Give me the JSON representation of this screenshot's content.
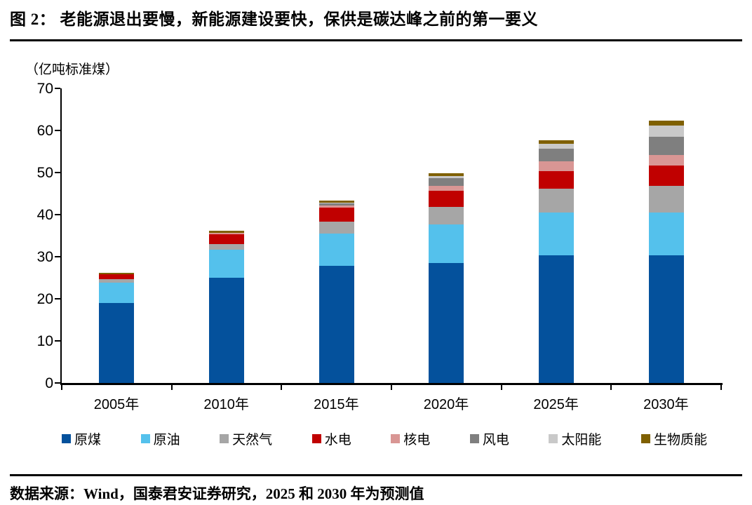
{
  "header": {
    "title": "图 2：  老能源退出要慢，新能源建设要快，保供是碳达峰之前的第一要义"
  },
  "footer": {
    "source": "数据来源：Wind，国泰君安证券研究，2025 和 2030 年为预测值"
  },
  "chart_data": {
    "type": "bar",
    "stacked": true,
    "unit_label": "（亿吨标准煤）",
    "categories": [
      "2005年",
      "2010年",
      "2015年",
      "2020年",
      "2025年",
      "2030年"
    ],
    "series": [
      {
        "name": "原煤",
        "color": "#04519C",
        "values": [
          19.0,
          25.0,
          27.8,
          28.5,
          30.3,
          30.4
        ]
      },
      {
        "name": "原油",
        "color": "#54C1EC",
        "values": [
          4.9,
          6.6,
          7.7,
          9.1,
          10.2,
          10.1
        ]
      },
      {
        "name": "天然气",
        "color": "#A6A6A6",
        "values": [
          0.8,
          1.4,
          2.8,
          4.2,
          5.6,
          6.3
        ]
      },
      {
        "name": "水电",
        "color": "#C00000",
        "values": [
          1.1,
          2.3,
          3.4,
          3.9,
          4.2,
          4.8
        ]
      },
      {
        "name": "核电",
        "color": "#D99694",
        "values": [
          0,
          0.3,
          0.5,
          1.2,
          2.3,
          2.6
        ]
      },
      {
        "name": "风电",
        "color": "#7F7F7F",
        "values": [
          0,
          0,
          0.5,
          1.7,
          3.1,
          4.3
        ]
      },
      {
        "name": "太阳能",
        "color": "#C9C9C9",
        "values": [
          0,
          0,
          0.1,
          0.6,
          1.1,
          2.6
        ]
      },
      {
        "name": "生物质能",
        "color": "#7F6000",
        "values": [
          0.4,
          0.6,
          0.6,
          0.6,
          0.9,
          1.2
        ]
      }
    ],
    "totals": [
      26.2,
      36.2,
      43.4,
      49.8,
      57.7,
      62.3
    ],
    "ylim": [
      0,
      70
    ],
    "yticks": [
      0,
      10,
      20,
      30,
      40,
      50,
      60,
      70
    ],
    "xlabel": "",
    "ylabel": "（亿吨标准煤）",
    "grid": false,
    "legend_position": "bottom"
  }
}
